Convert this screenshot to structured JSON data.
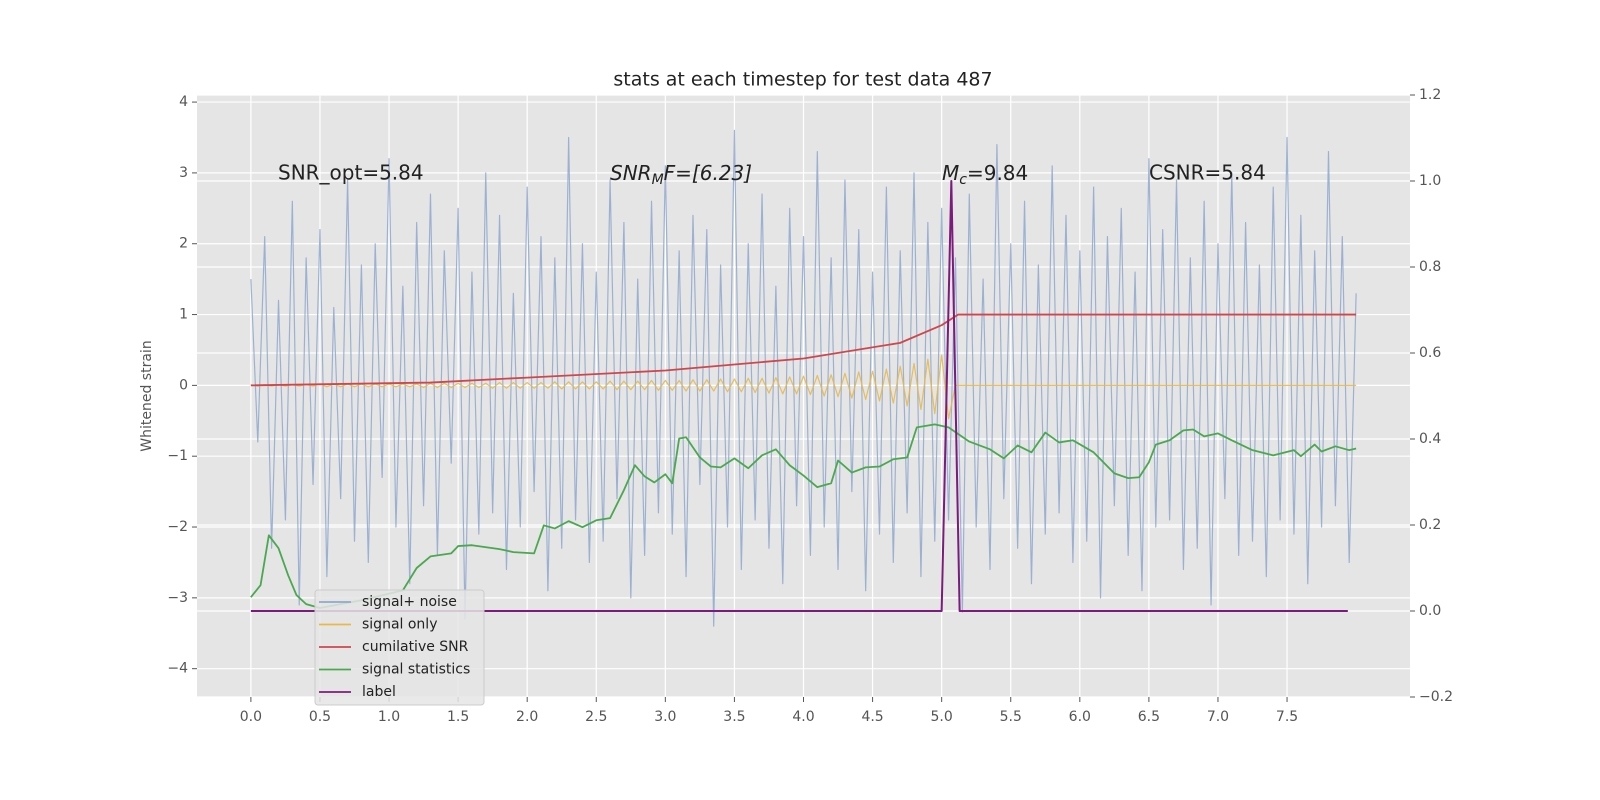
{
  "chart_data": {
    "type": "line",
    "title": "stats at each timestep for test data 487",
    "ylabel": "Whitened strain",
    "xlim": [
      -0.39,
      8.39
    ],
    "ylim": [
      -4.4,
      4.1
    ],
    "y2lim": [
      -0.2,
      1.2
    ],
    "xticks": [
      {
        "value": 0,
        "label": "0.0"
      },
      {
        "value": 0.5,
        "label": "0.5"
      },
      {
        "value": 1,
        "label": "1.0"
      },
      {
        "value": 1.5,
        "label": "1.5"
      },
      {
        "value": 2,
        "label": "2.0"
      },
      {
        "value": 2.5,
        "label": "2.5"
      },
      {
        "value": 3,
        "label": "3.0"
      },
      {
        "value": 3.5,
        "label": "3.5"
      },
      {
        "value": 4,
        "label": "4.0"
      },
      {
        "value": 4.5,
        "label": "4.5"
      },
      {
        "value": 5,
        "label": "5.0"
      },
      {
        "value": 5.5,
        "label": "5.5"
      },
      {
        "value": 6,
        "label": "6.0"
      },
      {
        "value": 6.5,
        "label": "6.5"
      },
      {
        "value": 7,
        "label": "7.0"
      },
      {
        "value": 7.5,
        "label": "7.5"
      }
    ],
    "yticks": [
      {
        "value": -4,
        "label": "−4"
      },
      {
        "value": -3,
        "label": "−3"
      },
      {
        "value": -2,
        "label": "−2"
      },
      {
        "value": -1,
        "label": "−1"
      },
      0,
      1,
      2,
      3,
      4
    ],
    "y2ticks": [
      {
        "value": -0.2,
        "label": "−0.2"
      },
      {
        "value": 0,
        "label": "0.0"
      },
      {
        "value": 0.2,
        "label": "0.2"
      },
      {
        "value": 0.4,
        "label": "0.4"
      },
      {
        "value": 0.6,
        "label": "0.6"
      },
      {
        "value": 0.8,
        "label": "0.8"
      },
      {
        "value": 1,
        "label": "1.0"
      },
      {
        "value": 1.2,
        "label": "1.2"
      }
    ],
    "grid": true,
    "legend": "lower left",
    "annotations": [
      {
        "text": "SNR_opt=5.84"
      },
      {
        "base": "SNR",
        "sub": "M",
        "rest": "F=[6.23]"
      },
      {
        "base": "M",
        "sub": "c",
        "rest": "=9.84"
      },
      {
        "text": "CSNR=5.84"
      }
    ],
    "x": [
      0,
      0.05,
      0.1,
      0.15,
      0.2,
      0.25,
      0.3,
      0.35,
      0.4,
      0.45,
      0.5,
      0.55,
      0.6,
      0.65,
      0.7,
      0.75,
      0.8,
      0.85,
      0.9,
      0.95,
      1,
      1.05,
      1.1,
      1.15,
      1.2,
      1.25,
      1.3,
      1.35,
      1.4,
      1.45,
      1.5,
      1.55,
      1.6,
      1.65,
      1.7,
      1.75,
      1.8,
      1.85,
      1.9,
      1.95,
      2,
      2.05,
      2.1,
      2.15,
      2.2,
      2.25,
      2.3,
      2.35,
      2.4,
      2.45,
      2.5,
      2.55,
      2.6,
      2.65,
      2.7,
      2.75,
      2.8,
      2.85,
      2.9,
      2.95,
      3,
      3.05,
      3.1,
      3.15,
      3.2,
      3.25,
      3.3,
      3.35,
      3.4,
      3.45,
      3.5,
      3.55,
      3.6,
      3.65,
      3.7,
      3.75,
      3.8,
      3.85,
      3.9,
      3.95,
      4,
      4.05,
      4.1,
      4.15,
      4.2,
      4.25,
      4.3,
      4.35,
      4.4,
      4.45,
      4.5,
      4.55,
      4.6,
      4.65,
      4.7,
      4.75,
      4.8,
      4.85,
      4.9,
      4.95,
      5,
      5.05,
      5.1,
      5.15,
      5.2,
      5.25,
      5.3,
      5.35,
      5.4,
      5.45,
      5.5,
      5.55,
      5.6,
      5.65,
      5.7,
      5.75,
      5.8,
      5.85,
      5.9,
      5.95,
      6,
      6.05,
      6.1,
      6.15,
      6.2,
      6.25,
      6.3,
      6.35,
      6.4,
      6.45,
      6.5,
      6.55,
      6.6,
      6.65,
      6.7,
      6.75,
      6.8,
      6.85,
      6.9,
      6.95,
      7,
      7.05,
      7.1,
      7.15,
      7.2,
      7.25,
      7.3,
      7.35,
      7.4,
      7.45,
      7.5,
      7.55,
      7.6,
      7.65,
      7.7,
      7.75,
      7.8,
      7.85,
      7.9,
      7.95,
      8
    ],
    "series": [
      {
        "name": "signal+ noise",
        "color": "#8fa8cf",
        "values": [
          1.5,
          -0.8,
          2.1,
          -2.3,
          1.2,
          -1.9,
          2.6,
          -3.1,
          1.8,
          -1.4,
          2.2,
          -2.7,
          1.1,
          -1.6,
          2.9,
          -2.2,
          1.7,
          -2.5,
          2.0,
          -1.3,
          3.2,
          -2.0,
          1.4,
          -2.8,
          2.3,
          -1.7,
          2.7,
          -2.4,
          1.9,
          -1.1,
          2.5,
          -3.3,
          1.6,
          -2.1,
          3.0,
          -1.8,
          2.4,
          -2.6,
          1.3,
          -2.0,
          2.8,
          -1.5,
          2.1,
          -2.9,
          1.8,
          -2.3,
          3.5,
          -1.9,
          2.0,
          -2.5,
          1.6,
          -2.2,
          2.9,
          -1.6,
          2.3,
          -3.0,
          1.5,
          -2.4,
          2.6,
          -1.8,
          3.1,
          -2.1,
          1.9,
          -2.7,
          2.4,
          -1.4,
          2.2,
          -3.4,
          1.7,
          -2.0,
          3.6,
          -2.6,
          2.0,
          -1.9,
          2.7,
          -2.3,
          1.4,
          -2.8,
          2.5,
          -1.7,
          2.1,
          -2.4,
          3.3,
          -2.0,
          1.8,
          -2.6,
          2.9,
          -1.5,
          2.2,
          -2.9,
          1.6,
          -2.1,
          2.8,
          -2.5,
          1.9,
          -1.8,
          3.0,
          -2.7,
          2.3,
          -2.2,
          2.5,
          -1.9,
          1.8,
          -3.2,
          2.7,
          -2.0,
          1.5,
          -2.6,
          3.4,
          -1.6,
          2.0,
          -2.3,
          2.6,
          -2.8,
          1.7,
          -2.1,
          3.1,
          -1.8,
          2.4,
          -2.5,
          1.9,
          -2.2,
          2.8,
          -3.0,
          2.1,
          -1.7,
          2.5,
          -2.4,
          1.6,
          -2.9,
          3.2,
          -2.0,
          2.2,
          -1.9,
          2.9,
          -2.6,
          1.8,
          -2.3,
          2.6,
          -3.1,
          2.0,
          -1.6,
          3.0,
          -2.4,
          2.3,
          -2.2,
          1.7,
          -2.7,
          2.8,
          -1.9,
          3.5,
          -2.1,
          2.4,
          -2.8,
          1.9,
          -2.0,
          3.3,
          -1.7,
          2.1,
          -2.5,
          1.3
        ]
      },
      {
        "name": "signal only",
        "color": "#e8b84a",
        "values": [
          0.01,
          -0.01,
          0.01,
          -0.01,
          0.01,
          -0.01,
          0.01,
          -0.01,
          0.01,
          -0.01,
          0.02,
          -0.02,
          0.02,
          -0.02,
          0.02,
          -0.02,
          0.02,
          -0.02,
          0.02,
          -0.02,
          0.02,
          -0.02,
          0.02,
          -0.02,
          0.02,
          -0.03,
          0.03,
          -0.03,
          0.03,
          -0.03,
          0.03,
          -0.03,
          0.03,
          -0.03,
          0.03,
          -0.04,
          0.04,
          -0.04,
          0.04,
          -0.04,
          0.04,
          -0.04,
          0.04,
          -0.04,
          0.05,
          -0.05,
          0.05,
          -0.05,
          0.05,
          -0.05,
          0.05,
          -0.05,
          0.06,
          -0.06,
          0.06,
          -0.06,
          0.06,
          -0.06,
          0.07,
          -0.07,
          0.07,
          -0.07,
          0.07,
          -0.08,
          0.08,
          -0.08,
          0.08,
          -0.08,
          0.09,
          -0.09,
          0.09,
          -0.09,
          0.1,
          -0.1,
          0.1,
          -0.11,
          0.11,
          -0.12,
          0.12,
          -0.12,
          0.13,
          -0.13,
          0.14,
          -0.15,
          0.15,
          -0.16,
          0.17,
          -0.18,
          0.19,
          -0.2,
          0.2,
          -0.22,
          0.23,
          -0.25,
          0.27,
          -0.29,
          0.31,
          -0.34,
          0.37,
          -0.4,
          0.43,
          -0.47,
          0,
          0,
          0,
          0,
          0,
          0,
          0,
          0,
          0,
          0,
          0,
          0,
          0,
          0,
          0,
          0,
          0,
          0,
          0,
          0,
          0,
          0,
          0,
          0,
          0,
          0,
          0,
          0,
          0,
          0,
          0,
          0,
          0,
          0,
          0,
          0,
          0,
          0,
          0,
          0,
          0,
          0,
          0,
          0,
          0,
          0,
          0,
          0,
          0,
          0,
          0,
          0,
          0,
          0,
          0,
          0,
          0,
          0,
          0
        ]
      },
      {
        "name": "cumilative SNR",
        "color": "#d0464a",
        "x": [
          0,
          1.3,
          2,
          3,
          4,
          4.7,
          5,
          5.12,
          8
        ],
        "values": [
          0,
          0.04,
          0.11,
          0.21,
          0.38,
          0.6,
          0.85,
          1,
          1
        ]
      },
      {
        "name": "signal statistics",
        "color": "#4aa84f",
        "axis": "y2",
        "x": [
          0,
          0.07,
          0.13,
          0.2,
          0.27,
          0.33,
          0.4,
          0.5,
          0.8,
          1.1,
          1.2,
          1.3,
          1.45,
          1.5,
          1.6,
          1.8,
          1.9,
          2.05,
          2.12,
          2.2,
          2.3,
          2.4,
          2.5,
          2.6,
          2.7,
          2.78,
          2.85,
          2.92,
          3,
          3.05,
          3.1,
          3.15,
          3.25,
          3.33,
          3.4,
          3.5,
          3.6,
          3.7,
          3.8,
          3.9,
          4,
          4.1,
          4.2,
          4.25,
          4.35,
          4.45,
          4.55,
          4.65,
          4.75,
          4.82,
          4.95,
          5.05,
          5.2,
          5.35,
          5.45,
          5.55,
          5.65,
          5.75,
          5.85,
          5.95,
          6.1,
          6.25,
          6.35,
          6.43,
          6.5,
          6.55,
          6.65,
          6.75,
          6.82,
          6.9,
          7,
          7.1,
          7.25,
          7.4,
          7.55,
          7.6,
          7.7,
          7.75,
          7.85,
          7.95,
          8
        ],
        "values": [
          0.032,
          0.06,
          0.176,
          0.146,
          0.083,
          0.037,
          0.016,
          0.007,
          0.025,
          0.048,
          0.1,
          0.127,
          0.134,
          0.151,
          0.153,
          0.144,
          0.137,
          0.134,
          0.199,
          0.192,
          0.209,
          0.195,
          0.211,
          0.216,
          0.281,
          0.339,
          0.313,
          0.299,
          0.318,
          0.297,
          0.401,
          0.404,
          0.357,
          0.336,
          0.334,
          0.355,
          0.332,
          0.362,
          0.376,
          0.339,
          0.315,
          0.288,
          0.297,
          0.35,
          0.322,
          0.334,
          0.336,
          0.353,
          0.357,
          0.427,
          0.434,
          0.427,
          0.394,
          0.376,
          0.355,
          0.385,
          0.369,
          0.415,
          0.392,
          0.397,
          0.369,
          0.32,
          0.309,
          0.311,
          0.346,
          0.387,
          0.397,
          0.42,
          0.422,
          0.406,
          0.413,
          0.397,
          0.374,
          0.362,
          0.374,
          0.36,
          0.387,
          0.371,
          0.383,
          0.374,
          0.378
        ]
      },
      {
        "name": "label",
        "color": "#7d1a7d",
        "axis": "y2",
        "x": [
          0,
          5,
          5.07,
          5.13,
          7.94
        ],
        "values": [
          0,
          0,
          1,
          0,
          0
        ]
      }
    ]
  }
}
